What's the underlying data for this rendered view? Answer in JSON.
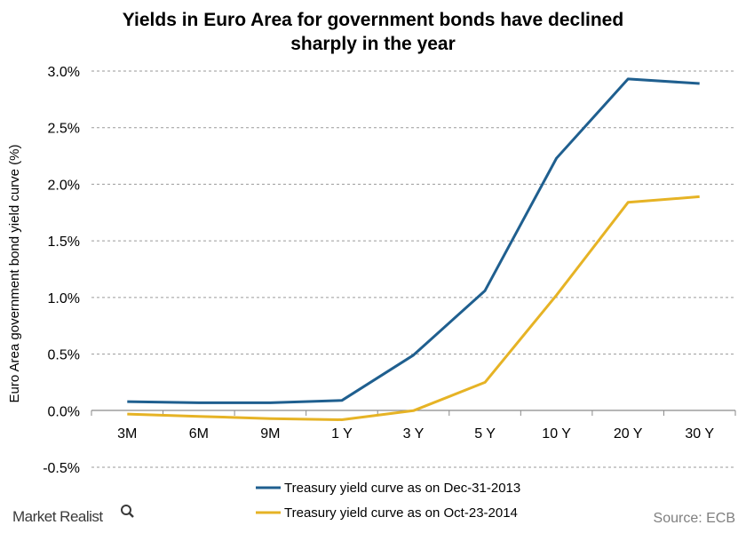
{
  "chart_data": {
    "type": "line",
    "title_lines": [
      "Yields in Euro Area for government bonds have declined",
      "sharply in the year"
    ],
    "ylabel": "Euro Area government bond yield curve (%)",
    "xlabel": "",
    "categories": [
      "3M",
      "6M",
      "9M",
      "1 Y",
      "3 Y",
      "5 Y",
      "10 Y",
      "20 Y",
      "30 Y"
    ],
    "ylim": [
      -0.5,
      3.0
    ],
    "yticks": [
      -0.5,
      0.0,
      0.5,
      1.0,
      1.5,
      2.0,
      2.5,
      3.0
    ],
    "ytick_labels": [
      "-0.5%",
      "0.0%",
      "0.5%",
      "1.0%",
      "1.5%",
      "2.0%",
      "2.5%",
      "3.0%"
    ],
    "grid": "horizontal dashed",
    "legend_position": "bottom",
    "series": [
      {
        "name": "Treasury yield curve as on Dec-31-2013",
        "color": "#1f5f8f",
        "values": [
          0.08,
          0.07,
          0.07,
          0.09,
          0.49,
          1.06,
          2.23,
          2.93,
          2.89
        ]
      },
      {
        "name": "Treasury yield curve as on Oct-23-2014",
        "color": "#e6b325",
        "values": [
          -0.03,
          -0.05,
          -0.07,
          -0.08,
          0.0,
          0.25,
          1.02,
          1.84,
          1.89
        ]
      }
    ]
  },
  "footer": {
    "source": "Source: ECB",
    "brand": "Market Realist"
  }
}
